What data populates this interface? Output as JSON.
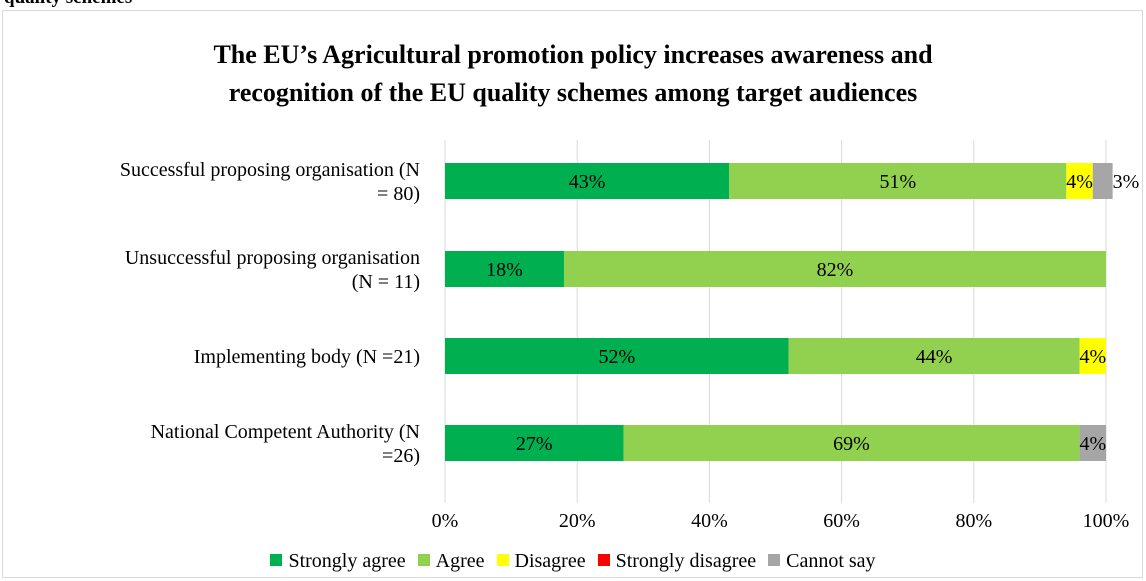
{
  "page": {
    "caption": "quality schemes"
  },
  "chart_data": {
    "type": "bar",
    "orientation": "horizontal",
    "stacked": true,
    "title_lines": [
      "The EU’s Agricultural promotion policy increases awareness and",
      "recognition of the EU quality schemes among target audiences"
    ],
    "categories": [
      [
        "Successful proposing organisation (N",
        "= 80)"
      ],
      [
        "Unsuccessful proposing organisation",
        "(N = 11)"
      ],
      [
        "Implementing body (N =21)"
      ],
      [
        "National Competent Authority (N",
        "=26)"
      ]
    ],
    "series": [
      {
        "name": "Strongly agree",
        "color": "#00b050",
        "values": [
          43,
          18,
          52,
          27
        ],
        "labels": [
          "43%",
          "18%",
          "52%",
          "27%"
        ]
      },
      {
        "name": "Agree",
        "color": "#92d050",
        "values": [
          51,
          82,
          44,
          69
        ],
        "labels": [
          "51%",
          "82%",
          "44%",
          "69%"
        ]
      },
      {
        "name": "Disagree",
        "color": "#ffff00",
        "values": [
          4,
          0,
          4,
          0
        ],
        "labels": [
          "4%",
          "",
          "4%",
          ""
        ]
      },
      {
        "name": "Strongly disagree",
        "color": "#ff0000",
        "values": [
          0,
          0,
          0,
          0
        ],
        "labels": [
          "",
          "",
          "",
          ""
        ]
      },
      {
        "name": "Cannot say",
        "color": "#a6a6a6",
        "values": [
          3,
          0,
          0,
          4
        ],
        "labels": [
          "3%",
          "",
          "",
          "4%"
        ]
      }
    ],
    "x_ticks": [
      "0%",
      "20%",
      "40%",
      "60%",
      "80%",
      "100%"
    ],
    "xlim": [
      0,
      100
    ],
    "grid": "vertical",
    "legend_position": "bottom"
  }
}
